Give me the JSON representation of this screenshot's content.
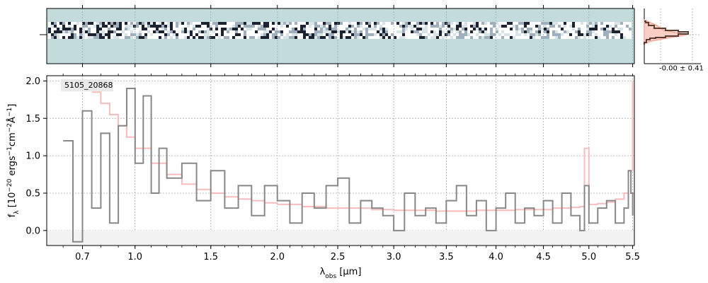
{
  "chart_data": [
    {
      "type": "heatmap",
      "panel": "2d-spectrum",
      "background_color": "#c3dcdb",
      "x_scale": "nonlinear",
      "x_range_um": [
        0.52,
        5.52
      ],
      "note": "2D spectral strip; noisy dark/white pixel trace across the full wavelength range, strongest at short wavelengths"
    },
    {
      "type": "line",
      "panel": "spatial-profile",
      "label": "-0.00 ± 0.41",
      "colors": {
        "profile": "#5c3b30",
        "model": "#f4a89a"
      }
    },
    {
      "type": "line",
      "panel": "1d-spectrum",
      "title": "",
      "annotation": "5105_20868",
      "xlabel_parts": {
        "var": "λ",
        "sub": "obs",
        "rest": " [μm]"
      },
      "ylabel_parts": {
        "f": "f",
        "sub": "λ",
        "unit": " [10",
        "exp1": "−20",
        "mid1": " ergs",
        "exp2": "−1",
        "mid2": "cm",
        "exp3": "−2",
        "mid3": "Å",
        "exp4": "−1",
        "end": "]"
      },
      "xlim": [
        0.52,
        5.52
      ],
      "ylim": [
        -0.2,
        2.07
      ],
      "x_ticks": [
        0.7,
        1.0,
        1.5,
        2.0,
        2.5,
        3.0,
        3.5,
        4.0,
        4.5,
        5.0,
        5.5
      ],
      "x_tick_labels": [
        "0.7",
        "1.0",
        "1.5",
        "2.0",
        "2.5",
        "3.0",
        "3.5",
        "4.0",
        "4.5",
        "5.0",
        "5.5"
      ],
      "y_ticks": [
        0.0,
        0.5,
        1.0,
        1.5,
        2.0
      ],
      "y_tick_labels": [
        "0.0",
        "0.5",
        "1.0",
        "1.5",
        "2.0"
      ],
      "grid": true,
      "colors": {
        "data": "#888888",
        "model": "#f9bcbc",
        "grid": "#aaaaaa",
        "zero": "#bbbbbb"
      },
      "series": [
        {
          "role": "observed",
          "style": "step",
          "x": [
            0.6,
            0.65,
            0.7,
            0.75,
            0.8,
            0.85,
            0.9,
            0.95,
            1.0,
            1.05,
            1.1,
            1.15,
            1.2,
            1.3,
            1.4,
            1.5,
            1.6,
            1.7,
            1.8,
            1.9,
            2.0,
            2.1,
            2.2,
            2.3,
            2.4,
            2.5,
            2.6,
            2.7,
            2.8,
            2.9,
            3.0,
            3.1,
            3.2,
            3.3,
            3.4,
            3.5,
            3.6,
            3.7,
            3.8,
            3.9,
            4.0,
            4.1,
            4.2,
            4.3,
            4.4,
            4.5,
            4.6,
            4.7,
            4.8,
            4.9,
            4.95,
            5.0,
            5.1,
            5.2,
            5.3,
            5.4,
            5.45,
            5.48,
            5.5
          ],
          "y": [
            1.2,
            -0.15,
            1.6,
            0.3,
            1.3,
            0.1,
            1.4,
            1.9,
            0.9,
            1.8,
            0.5,
            1.1,
            0.7,
            0.9,
            0.4,
            0.8,
            0.3,
            0.6,
            0.2,
            0.6,
            0.4,
            0.1,
            0.5,
            0.3,
            0.6,
            0.7,
            0.1,
            0.4,
            0.3,
            0.2,
            0.0,
            0.5,
            0.2,
            0.3,
            0.1,
            0.4,
            0.6,
            0.2,
            0.4,
            0.0,
            0.3,
            0.5,
            0.1,
            0.3,
            0.2,
            0.4,
            0.1,
            0.5,
            0.2,
            0.0,
            0.6,
            0.1,
            0.3,
            0.4,
            0.1,
            0.3,
            0.8,
            0.5,
            0.2
          ]
        },
        {
          "role": "model",
          "style": "step",
          "x": [
            0.75,
            0.8,
            0.85,
            0.9,
            0.95,
            1.0,
            1.1,
            1.2,
            1.3,
            1.4,
            1.5,
            1.6,
            1.7,
            1.8,
            1.9,
            2.0,
            2.2,
            2.4,
            2.6,
            2.8,
            3.0,
            3.2,
            3.4,
            3.6,
            3.8,
            4.0,
            4.2,
            4.4,
            4.6,
            4.8,
            4.9,
            4.95,
            5.0,
            5.1,
            5.2,
            5.3,
            5.4,
            5.45,
            5.5
          ],
          "y": [
            1.85,
            1.7,
            1.55,
            1.4,
            1.25,
            1.1,
            0.9,
            0.75,
            0.62,
            0.55,
            0.5,
            0.45,
            0.42,
            0.4,
            0.37,
            0.35,
            0.32,
            0.3,
            0.3,
            0.28,
            0.27,
            0.27,
            0.26,
            0.26,
            0.27,
            0.27,
            0.28,
            0.28,
            0.3,
            0.31,
            0.32,
            1.1,
            0.35,
            0.36,
            0.38,
            0.42,
            0.5,
            0.8,
            2.0
          ]
        }
      ]
    }
  ]
}
